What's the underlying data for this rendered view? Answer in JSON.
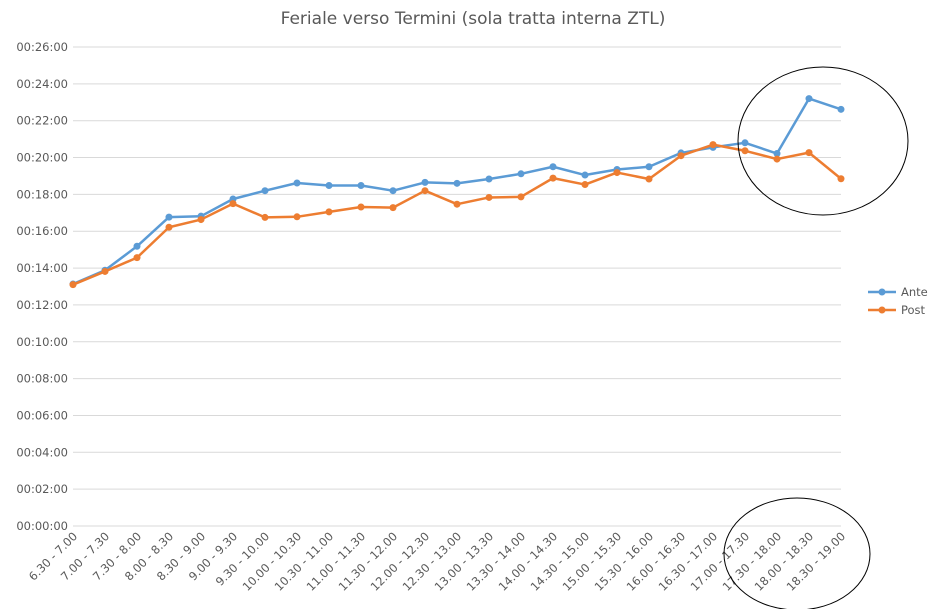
{
  "chart_data": {
    "type": "line",
    "title": "Feriale verso Termini (sola tratta interna ZTL)",
    "xlabel": "",
    "ylabel": "",
    "ylim": [
      0,
      1560
    ],
    "y_ticks": [
      {
        "value": 0,
        "label": "00:00:00"
      },
      {
        "value": 120,
        "label": "00:02:00"
      },
      {
        "value": 240,
        "label": "00:04:00"
      },
      {
        "value": 360,
        "label": "00:06:00"
      },
      {
        "value": 480,
        "label": "00:08:00"
      },
      {
        "value": 600,
        "label": "00:10:00"
      },
      {
        "value": 720,
        "label": "00:12:00"
      },
      {
        "value": 840,
        "label": "00:14:00"
      },
      {
        "value": 960,
        "label": "00:16:00"
      },
      {
        "value": 1080,
        "label": "00:18:00"
      },
      {
        "value": 1200,
        "label": "00:20:00"
      },
      {
        "value": 1320,
        "label": "00:22:00"
      },
      {
        "value": 1440,
        "label": "00:24:00"
      },
      {
        "value": 1560,
        "label": "00:26:00"
      }
    ],
    "categories": [
      "6.30 - 7.00",
      "7.00 - 7.30",
      "7.30 - 8.00",
      "8.00 - 8.30",
      "8.30 - 9.00",
      "9.00 - 9.30",
      "9.30 - 10.00",
      "10.00 - 10.30",
      "10.30 - 11.00",
      "11.00 - 11.30",
      "11.30 - 12.00",
      "12.00 - 12.30",
      "12.30 - 13.00",
      "13.00 - 13.30",
      "13.30 - 14.00",
      "14.00 - 14.30",
      "14.30 - 15.00",
      "15.00 - 15.30",
      "15.30 - 16.00",
      "16.00 - 16.30",
      "16.30 - 17.00",
      "17.00 - 17.30",
      "17.30 - 18.00",
      "18.00 - 18.30",
      "18.30 - 19.00"
    ],
    "series": [
      {
        "name": "Ante",
        "color": "#5b9bd5",
        "values": [
          788,
          833,
          911,
          1006,
          1009,
          1065,
          1092,
          1117,
          1109,
          1109,
          1092,
          1119,
          1116,
          1130,
          1147,
          1170,
          1143,
          1161,
          1170,
          1215,
          1233,
          1248,
          1213,
          1392,
          1357
        ]
      },
      {
        "name": "Post",
        "color": "#ed7d31",
        "values": [
          786,
          829,
          874,
          973,
          998,
          1050,
          1005,
          1007,
          1023,
          1039,
          1037,
          1092,
          1048,
          1070,
          1072,
          1133,
          1112,
          1151,
          1130,
          1206,
          1242,
          1222,
          1195,
          1216,
          1131
        ]
      }
    ],
    "legend_position": "right",
    "grid": true
  }
}
